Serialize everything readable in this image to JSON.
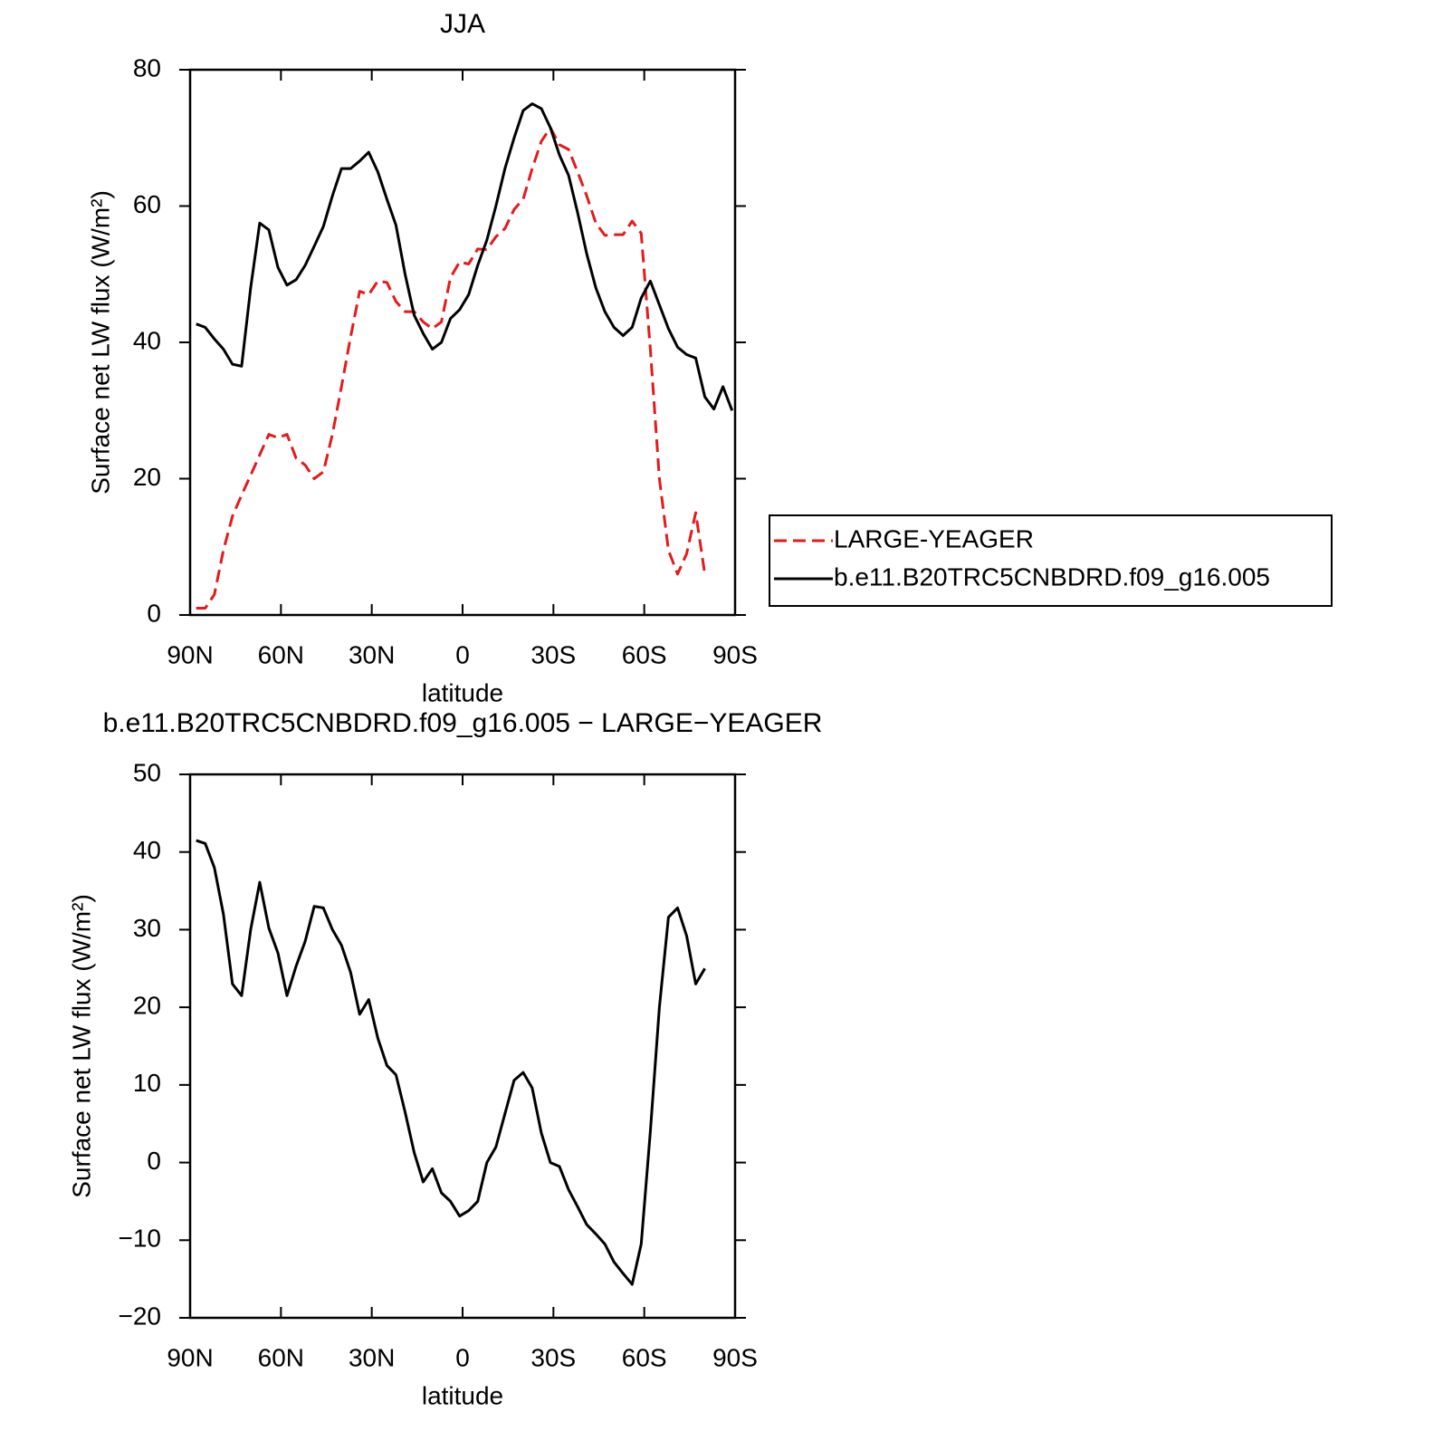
{
  "chart_data": [
    {
      "type": "line",
      "title": "JJA",
      "xlabel": "latitude",
      "ylabel": "Surface net LW flux (W/m²)",
      "x": [
        88,
        85,
        82,
        79,
        76,
        73,
        70,
        67,
        64,
        61,
        58,
        55,
        52,
        49,
        46,
        43,
        40,
        37,
        34,
        31,
        28,
        25,
        22,
        19,
        16,
        13,
        10,
        7,
        4,
        1,
        -2,
        -5,
        -8,
        -11,
        -14,
        -17,
        -20,
        -23,
        -26,
        -29,
        -32,
        -35,
        -38,
        -41,
        -44,
        -47,
        -50,
        -53,
        -56,
        -59,
        -62,
        -65,
        -68,
        -71,
        -74,
        -77,
        -80,
        -83,
        -86,
        -89
      ],
      "xlim": [
        90,
        -90
      ],
      "xticks": [
        {
          "value": 90,
          "label": "90N"
        },
        {
          "value": 60,
          "label": "60N"
        },
        {
          "value": 30,
          "label": "30N"
        },
        0,
        {
          "value": -30,
          "label": "30S"
        },
        {
          "value": -60,
          "label": "60S"
        },
        {
          "value": -90,
          "label": "90S"
        }
      ],
      "ylim": [
        0,
        80
      ],
      "yticks": [
        0,
        20,
        40,
        60,
        80
      ],
      "legend": "right",
      "series": [
        {
          "name": "LARGE-YEAGER",
          "color": "#e41a1c",
          "linestyle": "dashed",
          "values": [
            1.0,
            1.0,
            3,
            9.5,
            14.5,
            17.6,
            20.5,
            23.5,
            26.5,
            26,
            26.5,
            23,
            22,
            20,
            21,
            26.5,
            33.5,
            40.8,
            47.5,
            47,
            49,
            48.8,
            46,
            44.5,
            44.5,
            43,
            42,
            43,
            49.5,
            51.8,
            51.5,
            53.7,
            53.6,
            55.5,
            56.7,
            59.5,
            61,
            65.5,
            69.5,
            71.5,
            69,
            68.3,
            65,
            61.5,
            57.5,
            55.7,
            55.8,
            55.8,
            57.8,
            56,
            39,
            20,
            9.5,
            6,
            9,
            15,
            6,
            null,
            null,
            null
          ]
        },
        {
          "name": "b.e11.B20TRC5CNBDRD.f09_g16.005",
          "color": "#000000",
          "linestyle": "solid",
          "values": [
            42.7,
            42.2,
            40.5,
            39,
            36.8,
            36.5,
            48,
            57.5,
            56.5,
            51,
            48.4,
            49.2,
            51.3,
            54.1,
            57,
            61.5,
            65.5,
            65.5,
            66.6,
            67.9,
            65,
            61,
            57.2,
            50,
            44,
            41.3,
            39,
            40,
            43.5,
            44.8,
            47,
            51.3,
            55,
            60,
            65.5,
            70,
            74,
            75,
            74.3,
            71.5,
            67.5,
            64.5,
            59,
            53,
            48,
            44.5,
            42.2,
            41,
            42.2,
            46.5,
            49,
            45.5,
            42,
            39.3,
            38.2,
            37.7,
            32,
            30.2,
            33.5,
            30
          ]
        }
      ]
    },
    {
      "type": "line",
      "title": "b.e11.B20TRC5CNBDRD.f09_g16.005 − LARGE−YEAGER",
      "xlabel": "latitude",
      "ylabel": "Surface net LW flux (W/m²)",
      "x": [
        88,
        85,
        82,
        79,
        76,
        73,
        70,
        67,
        64,
        61,
        58,
        55,
        52,
        49,
        46,
        43,
        40,
        37,
        34,
        31,
        28,
        25,
        22,
        19,
        16,
        13,
        10,
        7,
        4,
        1,
        -2,
        -5,
        -8,
        -11,
        -14,
        -17,
        -20,
        -23,
        -26,
        -29,
        -32,
        -35,
        -38,
        -41,
        -44,
        -47,
        -50,
        -53,
        -56,
        -59,
        -62,
        -65,
        -68,
        -71,
        -74,
        -77,
        -80,
        -83,
        -86,
        -89
      ],
      "xlim": [
        90,
        -90
      ],
      "xticks": [
        {
          "value": 90,
          "label": "90N"
        },
        {
          "value": 60,
          "label": "60N"
        },
        {
          "value": 30,
          "label": "30N"
        },
        0,
        {
          "value": -30,
          "label": "30S"
        },
        {
          "value": -60,
          "label": "60S"
        },
        {
          "value": -90,
          "label": "90S"
        }
      ],
      "ylim": [
        -20,
        50
      ],
      "yticks": [
        {
          "value": -20,
          "label": "−20"
        },
        {
          "value": -10,
          "label": "−10"
        },
        0,
        10,
        20,
        30,
        40,
        50
      ],
      "series": [
        {
          "color": "#000000",
          "linestyle": "solid",
          "values": [
            41.5,
            41.1,
            38,
            32,
            23,
            21.5,
            30,
            36.1,
            30.2,
            27,
            21.5,
            25.3,
            28.5,
            33,
            32.8,
            30,
            28,
            24.5,
            19.1,
            21,
            16,
            12.5,
            11.3,
            6.5,
            1.3,
            -2.5,
            -0.8,
            -3.9,
            -5,
            -6.9,
            -6.2,
            -5,
            0,
            2,
            6.3,
            10.6,
            11.6,
            9.6,
            3.8,
            0,
            -0.5,
            -3.5,
            -5.7,
            -8,
            -9.2,
            -10.5,
            -12.8,
            -14.3,
            -15.7,
            -10.5,
            4,
            20,
            31.6,
            32.8,
            29.2,
            23,
            25,
            null,
            null,
            null
          ]
        }
      ]
    }
  ]
}
